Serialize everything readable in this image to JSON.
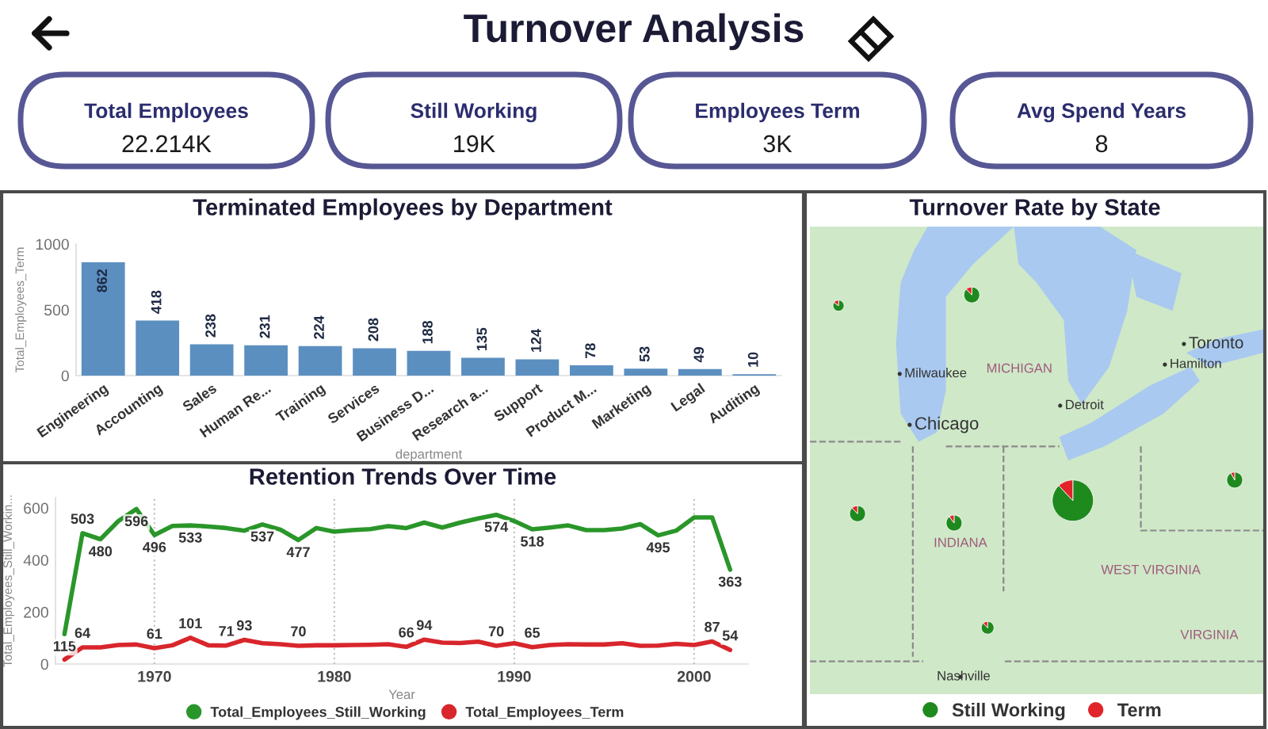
{
  "chart_data": [
    {
      "type": "other",
      "title": "Turnover Analysis",
      "annotations": [
        "Total Employees",
        "22.214K",
        "Still Working",
        "19K",
        "Employees Term",
        "3K",
        "Avg Spend Years",
        "8"
      ]
    },
    {
      "type": "bar",
      "title": "Terminated Employees by Department",
      "xlabel": "department",
      "ylabel": "Total_Employees_Term",
      "categories": [
        "Engineering",
        "Accounting",
        "Sales",
        "Human Re...",
        "Training",
        "Services",
        "Business D...",
        "Research a...",
        "Support",
        "Product M...",
        "Marketing",
        "Legal",
        "Auditing"
      ],
      "values": [
        862,
        418,
        238,
        231,
        224,
        208,
        188,
        135,
        124,
        78,
        53,
        49,
        10
      ],
      "color": "#5b8fc0",
      "ylim": [
        0,
        1000
      ],
      "yticks": [
        0,
        500,
        1000
      ],
      "data_labels": true
    },
    {
      "type": "line",
      "title": "Retention Trends Over Time",
      "xlabel": "Year",
      "ylabel": "Total_Employees_Still_Workin...",
      "x": [
        1965,
        1966,
        1967,
        1968,
        1969,
        1970,
        1971,
        1972,
        1973,
        1974,
        1975,
        1976,
        1977,
        1978,
        1979,
        1980,
        1981,
        1982,
        1983,
        1984,
        1985,
        1986,
        1987,
        1988,
        1989,
        1990,
        1991,
        1992,
        1993,
        1994,
        1995,
        1996,
        1997,
        1998,
        1999,
        2000,
        2001,
        2002
      ],
      "series": [
        {
          "name": "Total_Employees_Still_Working",
          "color": "#2a962a",
          "values": [
            115,
            503,
            480,
            550,
            596,
            496,
            531,
            533,
            529,
            523,
            513,
            537,
            517,
            477,
            523,
            509,
            515,
            519,
            530,
            523,
            544,
            525,
            544,
            560,
            574,
            550,
            518,
            525,
            533,
            515,
            515,
            521,
            538,
            495,
            513,
            564,
            564,
            363
          ],
          "value_labels": [
            "115",
            "503",
            "480",
            null,
            "596",
            "496",
            null,
            "533",
            null,
            null,
            null,
            "537",
            null,
            "477",
            null,
            null,
            null,
            null,
            null,
            null,
            null,
            null,
            null,
            null,
            "574",
            null,
            "518",
            null,
            null,
            null,
            null,
            null,
            null,
            "495",
            null,
            null,
            null,
            "363"
          ]
        },
        {
          "name": "Total_Employees_Term",
          "color": "#d8262c",
          "values": [
            17,
            64,
            64,
            73,
            75,
            61,
            72,
            101,
            72,
            71,
            93,
            80,
            76,
            70,
            72,
            72,
            73,
            74,
            76,
            66,
            94,
            82,
            81,
            86,
            70,
            80,
            65,
            73,
            76,
            75,
            75,
            80,
            70,
            71,
            78,
            73,
            87,
            54
          ],
          "value_labels": [
            null,
            "64",
            null,
            null,
            null,
            "61",
            null,
            "101",
            null,
            "71",
            "93",
            null,
            null,
            "70",
            null,
            null,
            null,
            null,
            null,
            "66",
            "94",
            null,
            null,
            null,
            "70",
            null,
            "65",
            null,
            null,
            null,
            null,
            null,
            null,
            null,
            null,
            null,
            "87",
            "54"
          ]
        }
      ],
      "xlim": [
        1964.5,
        2003
      ],
      "xticks": [
        1970,
        1980,
        1990,
        2000
      ],
      "ylim": [
        0,
        640
      ],
      "yticks": [
        0,
        200,
        400,
        600
      ],
      "grid": "x",
      "legend": "bottom"
    },
    {
      "type": "other",
      "title": "Turnover Rate by State",
      "series": [
        {
          "name": "Still Working",
          "color": "#1e8a1e"
        },
        {
          "name": "Term",
          "color": "#e0242a"
        }
      ],
      "legend": "bottom",
      "annotations": [
        "Milwaukee",
        "MICHIGAN",
        "Toronto",
        "Hamilton",
        "Detroit",
        "Chicago",
        "INDIANA",
        "WEST VIRGINIA",
        "VIRGINIA",
        "Nashville"
      ]
    }
  ]
}
